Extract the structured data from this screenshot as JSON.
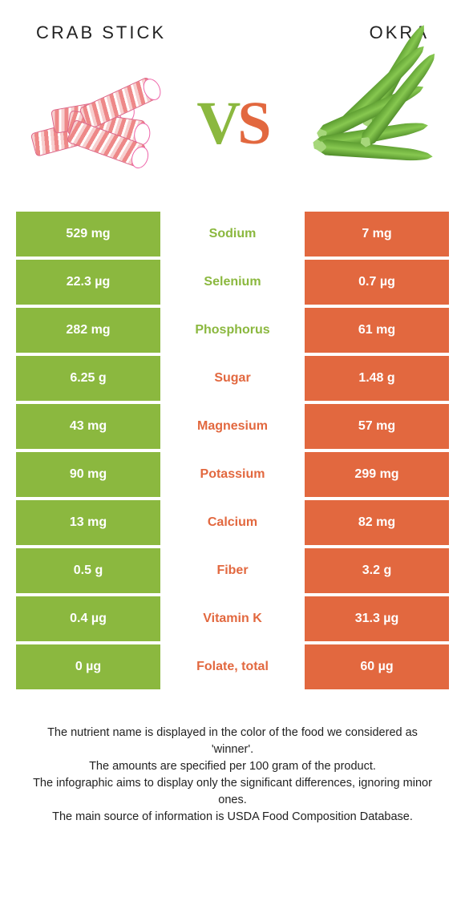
{
  "colors": {
    "left": "#8bb83f",
    "right": "#e2683f",
    "white": "#ffffff"
  },
  "header": {
    "left_title": "Crab stick",
    "right_title": "Okra"
  },
  "vs": {
    "v": "V",
    "s": "S"
  },
  "rows": [
    {
      "left": "529 mg",
      "name": "Sodium",
      "right": "7 mg",
      "winner": "left"
    },
    {
      "left": "22.3 µg",
      "name": "Selenium",
      "right": "0.7 µg",
      "winner": "left"
    },
    {
      "left": "282 mg",
      "name": "Phosphorus",
      "right": "61 mg",
      "winner": "left"
    },
    {
      "left": "6.25 g",
      "name": "Sugar",
      "right": "1.48 g",
      "winner": "right"
    },
    {
      "left": "43 mg",
      "name": "Magnesium",
      "right": "57 mg",
      "winner": "right"
    },
    {
      "left": "90 mg",
      "name": "Potassium",
      "right": "299 mg",
      "winner": "right"
    },
    {
      "left": "13 mg",
      "name": "Calcium",
      "right": "82 mg",
      "winner": "right"
    },
    {
      "left": "0.5 g",
      "name": "Fiber",
      "right": "3.2 g",
      "winner": "right"
    },
    {
      "left": "0.4 µg",
      "name": "Vitamin K",
      "right": "31.3 µg",
      "winner": "right"
    },
    {
      "left": "0 µg",
      "name": "Folate, total",
      "right": "60 µg",
      "winner": "right"
    }
  ],
  "footer": {
    "line1": "The nutrient name is displayed in the color of the food we considered as 'winner'.",
    "line2": "The amounts are specified per 100 gram of the product.",
    "line3": "The infographic aims to display only the significant differences, ignoring minor ones.",
    "line4": "The main source of information is USDA Food Composition Database."
  }
}
